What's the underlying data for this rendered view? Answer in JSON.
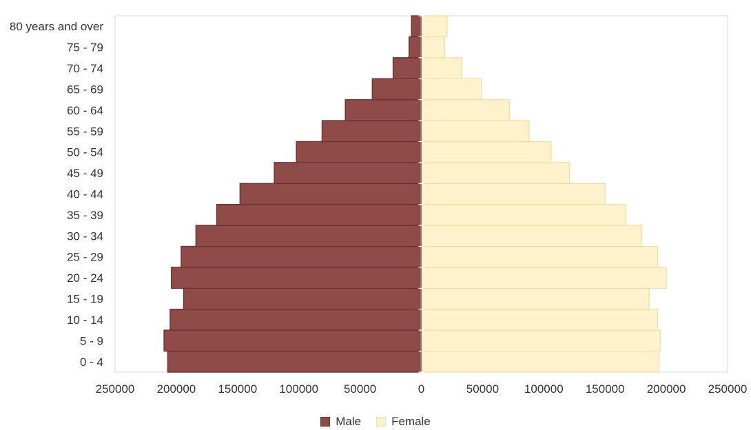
{
  "chart_data": {
    "type": "bar",
    "orientation": "horizontal",
    "categories": [
      "0 - 4",
      "5 - 9",
      "10 - 14",
      "15 - 19",
      "20 - 24",
      "25 - 29",
      "30 - 34",
      "35 - 39",
      "40 - 44",
      "45 - 49",
      "50 - 54",
      "55 - 59",
      "60 - 64",
      "65 - 69",
      "70 - 74",
      "75 - 79",
      "80 years and over"
    ],
    "series": [
      {
        "name": "Male",
        "values": [
          -207000,
          -210000,
          -205000,
          -194000,
          -204000,
          -196000,
          -184000,
          -167000,
          -148000,
          -120000,
          -102000,
          -81000,
          -62000,
          -40000,
          -23000,
          -10000,
          -8000
        ]
      },
      {
        "name": "Female",
        "values": [
          194000,
          195000,
          193000,
          186000,
          200000,
          193000,
          180000,
          167000,
          150000,
          121000,
          106000,
          88000,
          72000,
          49000,
          33000,
          19000,
          21000
        ]
      }
    ],
    "colors": {
      "Male": "#8e4b48",
      "Female": "#fff2cc",
      "male_stroke": "#6e3432",
      "female_stroke": "#f3e2a8",
      "axis": "#d9d9d9",
      "center_line": "#7f7f7f"
    },
    "xlim": [
      -250000,
      250000
    ],
    "xticks": [
      -250000,
      -200000,
      -150000,
      -100000,
      -50000,
      0,
      50000,
      100000,
      150000,
      200000,
      250000
    ],
    "xtick_labels": [
      "250000",
      "200000",
      "150000",
      "100000",
      "50000",
      "0",
      "50000",
      "100000",
      "150000",
      "200000",
      "250000"
    ],
    "title": "",
    "xlabel": "",
    "ylabel": "",
    "grid": false,
    "legend_position": "bottom-center"
  },
  "legend": {
    "male_label": "Male",
    "female_label": "Female"
  }
}
